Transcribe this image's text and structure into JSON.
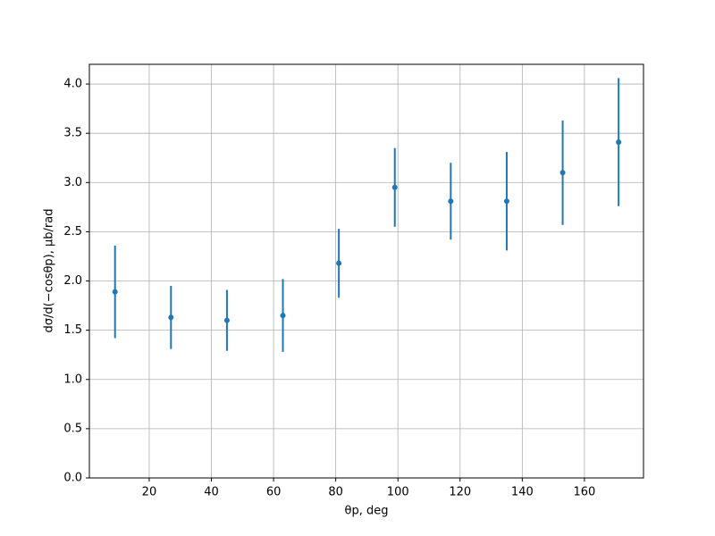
{
  "chart_data": {
    "type": "errorbar",
    "xlabel": "θp, deg",
    "ylabel": "dσ/d(−cosθp), μb/rad",
    "x": [
      9,
      27,
      45,
      63,
      81,
      99,
      117,
      135,
      153,
      171
    ],
    "series": [
      {
        "color": "#1f77b4",
        "values": [
          1.89,
          1.63,
          1.6,
          1.65,
          2.18,
          2.95,
          2.81,
          2.81,
          3.1,
          3.41
        ],
        "errors": [
          0.47,
          0.32,
          0.31,
          0.37,
          0.35,
          0.4,
          0.39,
          0.5,
          0.53,
          0.65
        ]
      }
    ],
    "xlim": [
      0.75,
      179
    ],
    "ylim": [
      0,
      4.2
    ],
    "xticks": [
      20,
      40,
      60,
      80,
      100,
      120,
      140,
      160
    ],
    "yticks": [
      {
        "value": 0,
        "label": "0.0"
      },
      {
        "value": 0.5,
        "label": "0.5"
      },
      {
        "value": 1,
        "label": "1.0"
      },
      {
        "value": 1.5,
        "label": "1.5"
      },
      {
        "value": 2,
        "label": "2.0"
      },
      {
        "value": 2.5,
        "label": "2.5"
      },
      {
        "value": 3,
        "label": "3.0"
      },
      {
        "value": 3.5,
        "label": "3.5"
      },
      {
        "value": 4,
        "label": "4.0"
      }
    ],
    "grid": true
  }
}
